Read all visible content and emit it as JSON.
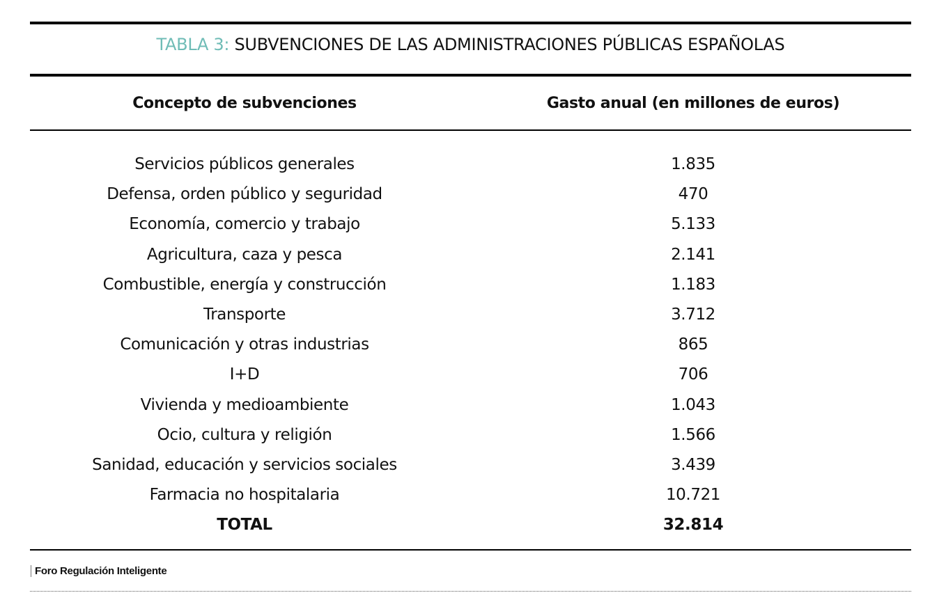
{
  "title": {
    "label": "TABLA 3:",
    "text": "SUBVENCIONES DE LAS ADMINISTRACIONES PÚBLICAS ESPAÑOLAS"
  },
  "colors": {
    "accent": "#6fbcb6"
  },
  "table": {
    "headers": [
      "Concepto de subvenciones",
      "Gasto anual (en millones de euros)"
    ],
    "rows": [
      {
        "concept": "Servicios públicos generales",
        "value": "1.835"
      },
      {
        "concept": "Defensa, orden público y seguridad",
        "value": "470"
      },
      {
        "concept": "Economía, comercio y trabajo",
        "value": "5.133"
      },
      {
        "concept": "Agricultura, caza y pesca",
        "value": "2.141"
      },
      {
        "concept": "Combustible, energía y construcción",
        "value": "1.183"
      },
      {
        "concept": "Transporte",
        "value": "3.712"
      },
      {
        "concept": "Comunicación y otras industrias",
        "value": "865"
      },
      {
        "concept": "I+D",
        "value": "706"
      },
      {
        "concept": "Vivienda y medioambiente",
        "value": "1.043"
      },
      {
        "concept": "Ocio, cultura y religión",
        "value": "1.566"
      },
      {
        "concept": "Sanidad, educación y servicios sociales",
        "value": "3.439"
      },
      {
        "concept": "Farmacia no hospitalaria",
        "value": "10.721"
      }
    ],
    "total": {
      "concept": "TOTAL",
      "value": "32.814"
    }
  },
  "source": "Foro Regulación Inteligente"
}
